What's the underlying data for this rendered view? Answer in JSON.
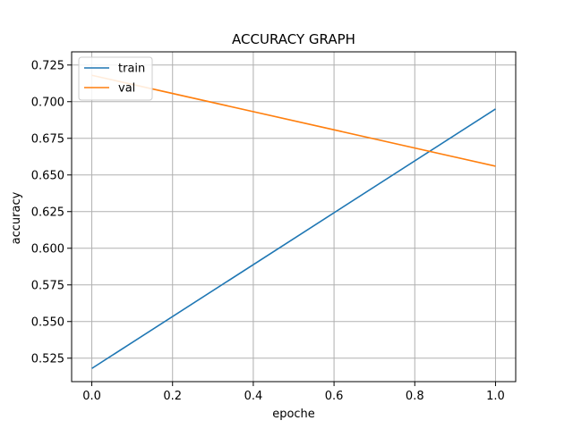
{
  "chart_data": {
    "type": "line",
    "title": "ACCURACY GRAPH",
    "xlabel": "epoche",
    "ylabel": "accuracy",
    "xlim": [
      -0.05,
      1.05
    ],
    "ylim": [
      0.509,
      0.734
    ],
    "x_ticks": [
      0.0,
      0.2,
      0.4,
      0.6,
      0.8,
      1.0
    ],
    "x_tick_labels": [
      "0.0",
      "0.2",
      "0.4",
      "0.6",
      "0.8",
      "1.0"
    ],
    "y_ticks": [
      0.525,
      0.55,
      0.575,
      0.6,
      0.625,
      0.65,
      0.675,
      0.7,
      0.725
    ],
    "y_tick_labels": [
      "0.525",
      "0.550",
      "0.575",
      "0.600",
      "0.625",
      "0.650",
      "0.675",
      "0.700",
      "0.725"
    ],
    "grid": true,
    "legend_position": "top-left",
    "x": [
      0,
      1
    ],
    "series": [
      {
        "name": "train",
        "color": "#1f77b4",
        "values": [
          0.518,
          0.695
        ]
      },
      {
        "name": "val",
        "color": "#ff7f0e",
        "values": [
          0.718,
          0.656
        ]
      }
    ]
  }
}
